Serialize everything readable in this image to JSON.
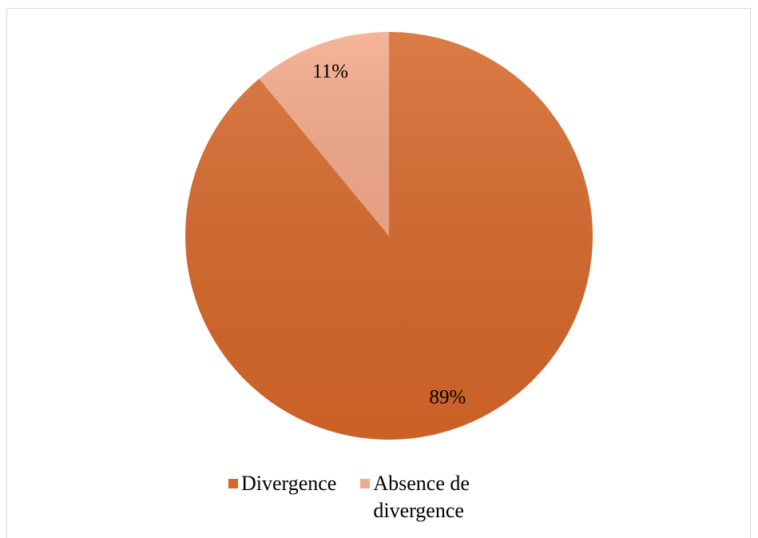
{
  "chart_data": {
    "type": "pie",
    "categories": [
      "Divergence",
      "Absence de divergence"
    ],
    "values": [
      89,
      11
    ],
    "value_labels": [
      "89%",
      "11%"
    ],
    "colors": [
      "#d5672a",
      "#f3a98b"
    ],
    "legend": "bottom"
  }
}
